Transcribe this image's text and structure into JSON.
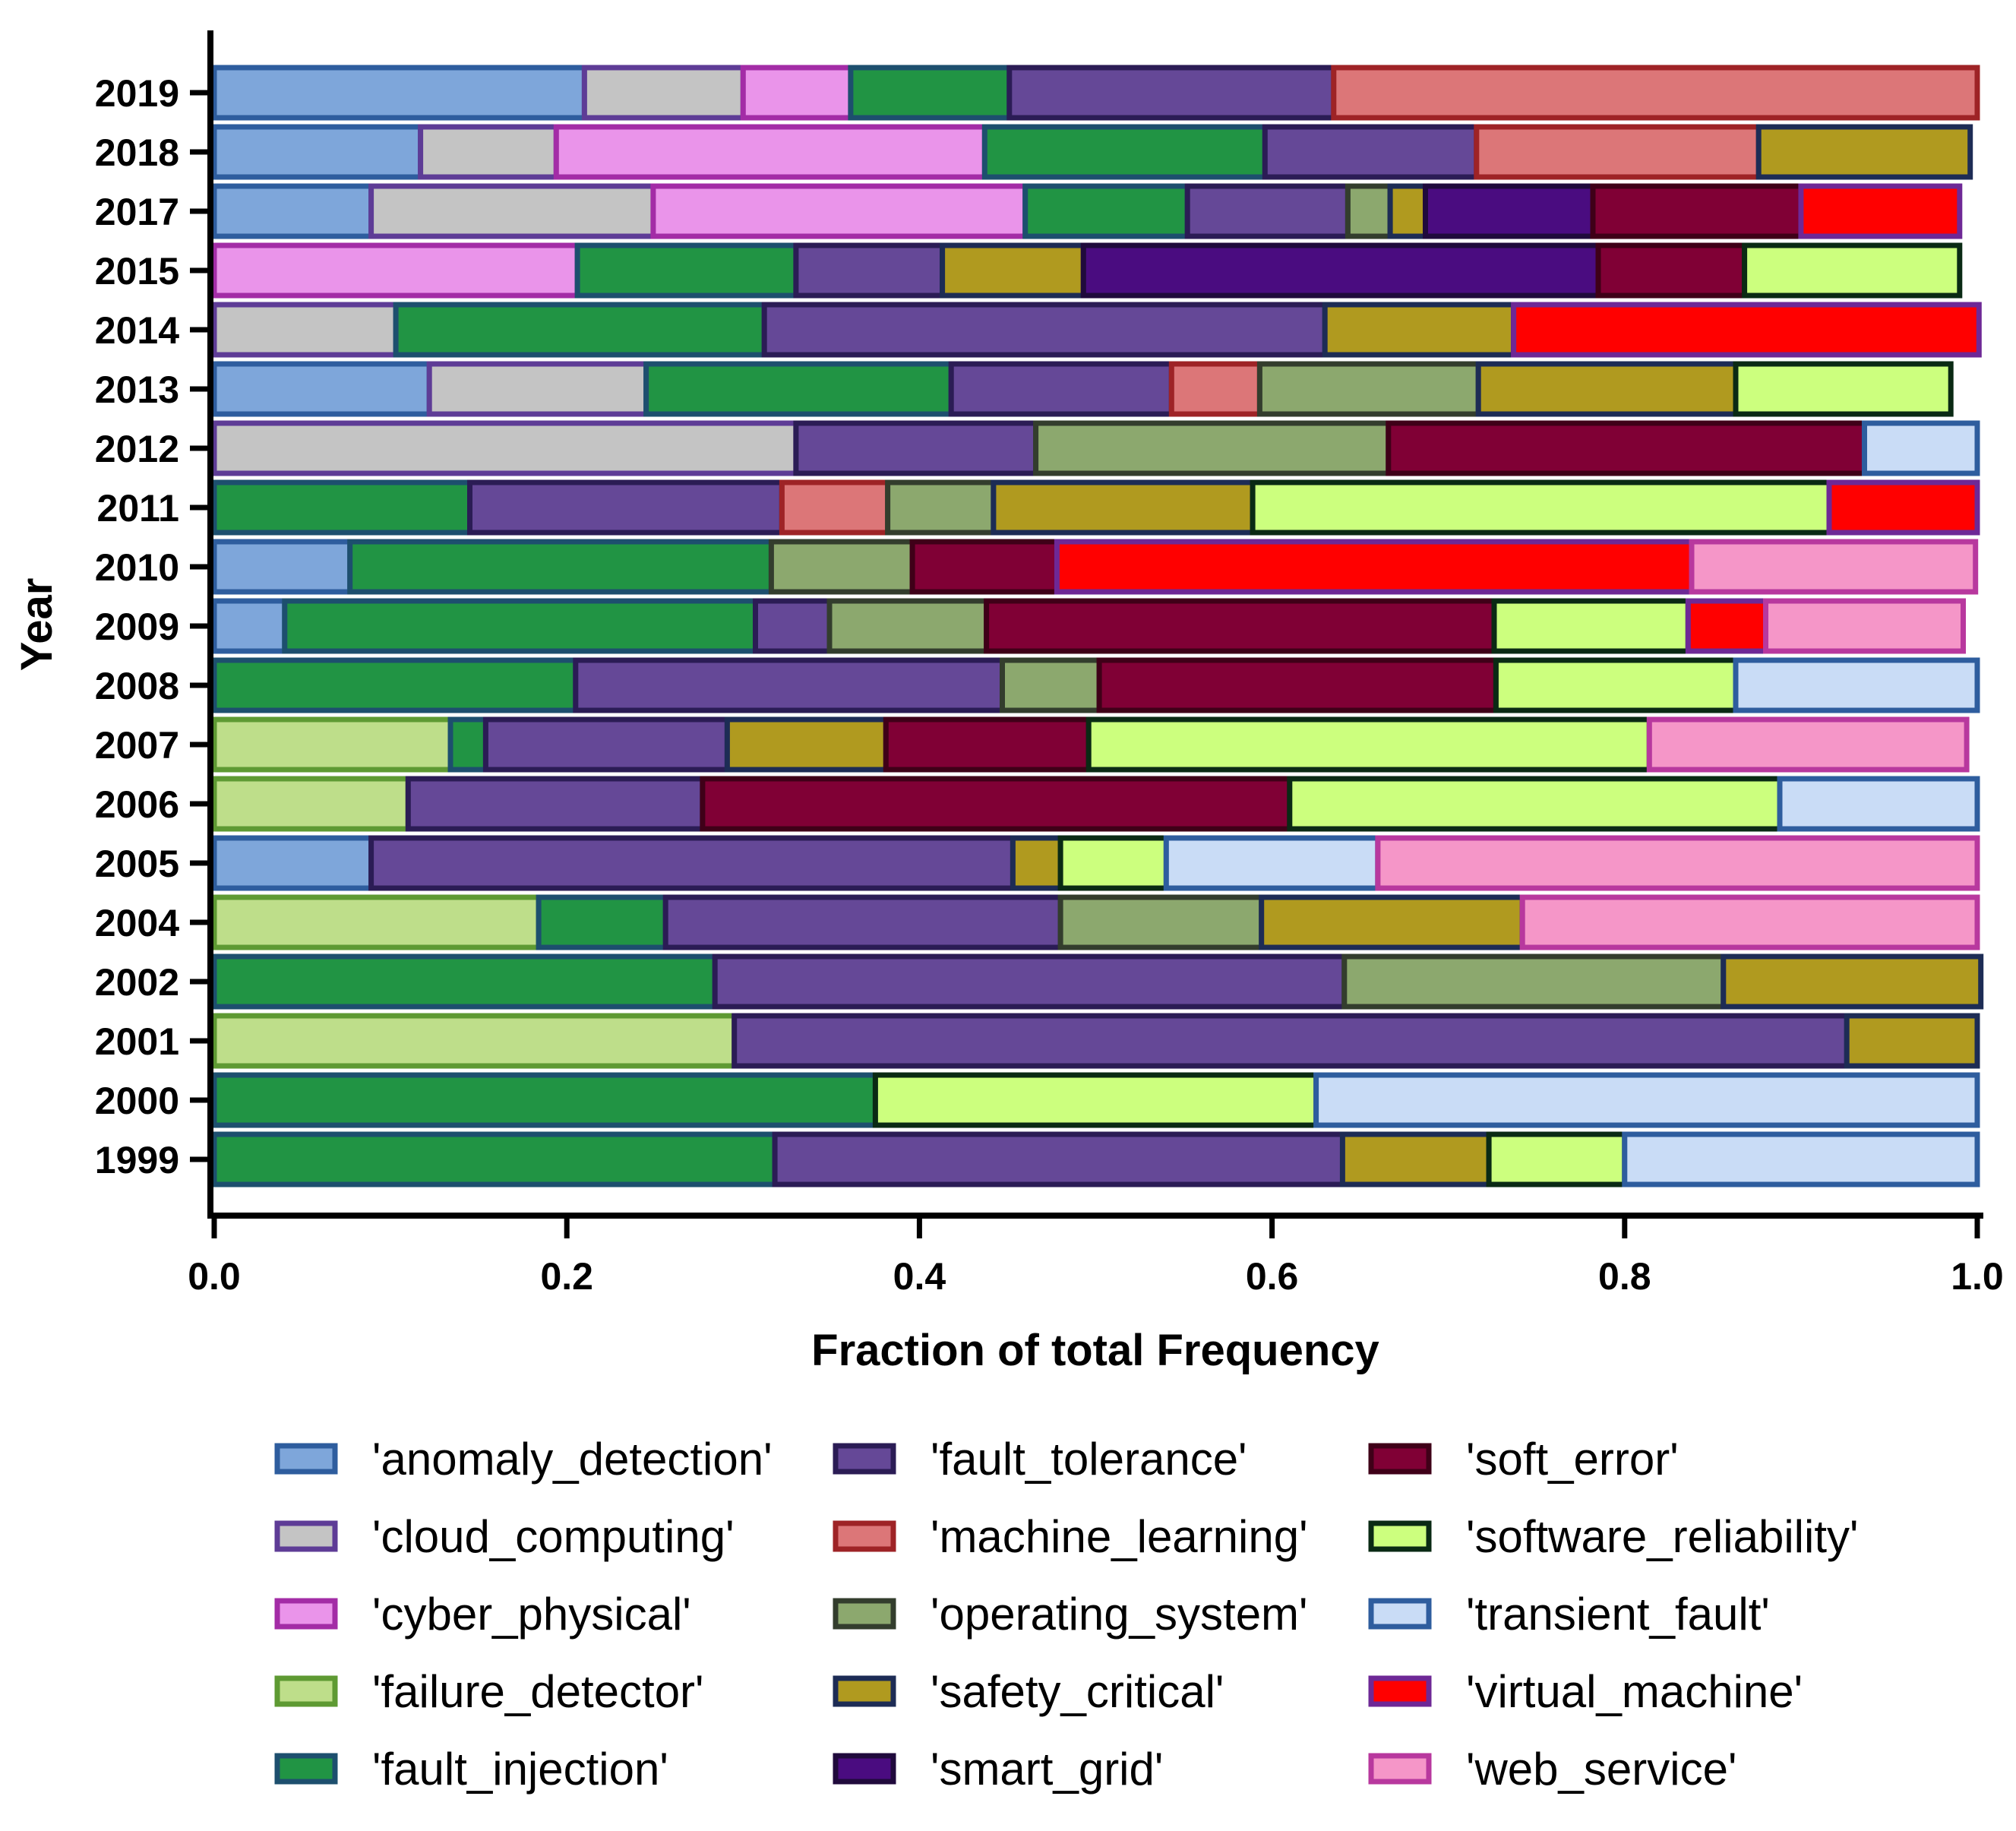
{
  "chart_data": {
    "type": "bar",
    "orientation": "horizontal",
    "stacked": true,
    "xlabel": "Fraction of total Frequency",
    "ylabel": "Year",
    "xlim": [
      0,
      1
    ],
    "x_ticks": [
      "0.0",
      "0.2",
      "0.4",
      "0.6",
      "0.8",
      "1.0"
    ],
    "categories": [
      "2019",
      "2018",
      "2017",
      "2015",
      "2014",
      "2013",
      "2012",
      "2011",
      "2010",
      "2009",
      "2008",
      "2007",
      "2006",
      "2005",
      "2004",
      "2002",
      "2001",
      "2000",
      "1999"
    ],
    "grid": false,
    "legend_position": "bottom",
    "legend_columns": 3,
    "series": [
      {
        "name": "'anomaly_detection'",
        "fill": "#7ea6da",
        "edge": "#2e5d9e",
        "values": [
          0.21,
          0.117,
          0.089,
          0,
          0,
          0.122,
          0,
          0,
          0.077,
          0.04,
          0,
          0,
          0,
          0.089,
          0,
          0,
          0,
          0,
          0
        ]
      },
      {
        "name": "'cloud_computing'",
        "fill": "#c4c4c4",
        "edge": "#5e3c96",
        "values": [
          0.09,
          0.077,
          0.16,
          0,
          0.103,
          0.123,
          0.33,
          0,
          0,
          0,
          0,
          0,
          0,
          0,
          0,
          0,
          0,
          0,
          0
        ]
      },
      {
        "name": "'cyber_physical'",
        "fill": "#ea94ea",
        "edge": "#a32ca6",
        "values": [
          0.061,
          0.243,
          0.211,
          0.206,
          0,
          0,
          0,
          0,
          0,
          0,
          0,
          0,
          0,
          0,
          0,
          0,
          0,
          0,
          0
        ]
      },
      {
        "name": "'failure_detector'",
        "fill": "#bede8a",
        "edge": "#5e9a33",
        "values": [
          0,
          0,
          0,
          0,
          0,
          0,
          0,
          0,
          0,
          0,
          0,
          0.134,
          0.11,
          0,
          0.184,
          0,
          0.295,
          0,
          0
        ]
      },
      {
        "name": "'fault_injection'",
        "fill": "#219444",
        "edge": "#1d4f6e",
        "values": [
          0.09,
          0.159,
          0.092,
          0.124,
          0.209,
          0.173,
          0,
          0.145,
          0.239,
          0.267,
          0.205,
          0.02,
          0,
          0,
          0.072,
          0.284,
          0,
          0.375,
          0.318
        ]
      },
      {
        "name": "'fault_tolerance'",
        "fill": "#654897",
        "edge": "#2b1c55",
        "values": [
          0.184,
          0.12,
          0.091,
          0.083,
          0.318,
          0.125,
          0.136,
          0.177,
          0,
          0.042,
          0.242,
          0.137,
          0.167,
          0.364,
          0.224,
          0.357,
          0.631,
          0,
          0.322
        ]
      },
      {
        "name": "'machine_learning'",
        "fill": "#dc7678",
        "edge": "#9e2326",
        "values": [
          0.365,
          0.16,
          0,
          0,
          0,
          0.05,
          0,
          0.06,
          0,
          0,
          0,
          0,
          0,
          0,
          0,
          0,
          0,
          0,
          0
        ]
      },
      {
        "name": "'operating_system'",
        "fill": "#8ca86e",
        "edge": "#333d2d",
        "values": [
          0,
          0,
          0.024,
          0,
          0,
          0.124,
          0.2,
          0.06,
          0.08,
          0.089,
          0.055,
          0,
          0,
          0,
          0.114,
          0.215,
          0,
          0,
          0
        ]
      },
      {
        "name": "'safety_critical'",
        "fill": "#b09a1f",
        "edge": "#1d2c55",
        "values": [
          0,
          0.12,
          0.02,
          0.08,
          0.107,
          0.146,
          0,
          0.147,
          0,
          0,
          0,
          0.09,
          0,
          0.027,
          0.148,
          0.146,
          0.074,
          0,
          0.083
        ]
      },
      {
        "name": "'smart_grid'",
        "fill": "#4a0c80",
        "edge": "#200a3c",
        "values": [
          0,
          0,
          0.095,
          0.292,
          0,
          0,
          0,
          0,
          0,
          0,
          0,
          0,
          0,
          0,
          0,
          0,
          0,
          0,
          0
        ]
      },
      {
        "name": "'soft_error'",
        "fill": "#800035",
        "edge": "#3f0018",
        "values": [
          0,
          0,
          0.118,
          0.083,
          0,
          0,
          0.27,
          0,
          0.082,
          0.288,
          0.225,
          0.115,
          0.333,
          0,
          0,
          0,
          0,
          0,
          0
        ]
      },
      {
        "name": "'software_reliability'",
        "fill": "#ccff7e",
        "edge": "#0a2a14",
        "values": [
          0,
          0,
          0,
          0.122,
          0,
          0.122,
          0,
          0.327,
          0,
          0.11,
          0.136,
          0.318,
          0.278,
          0.06,
          0,
          0,
          0,
          0.25,
          0.077
        ]
      },
      {
        "name": "'transient_fault'",
        "fill": "#c9dcf6",
        "edge": "#2e5d9e",
        "values": [
          0,
          0,
          0,
          0,
          0,
          0,
          0.064,
          0,
          0,
          0,
          0.137,
          0,
          0.112,
          0.12,
          0,
          0,
          0,
          0.375,
          0.2
        ]
      },
      {
        "name": "'virtual_machine'",
        "fill": "#ff0000",
        "edge": "#6e2896",
        "values": [
          0,
          0,
          0.09,
          0,
          0.264,
          0,
          0,
          0.084,
          0.36,
          0.044,
          0,
          0,
          0,
          0,
          0,
          0,
          0,
          0,
          0
        ]
      },
      {
        "name": "'web_service'",
        "fill": "#f596c8",
        "edge": "#b8389e",
        "values": [
          0,
          0,
          0,
          0,
          0,
          0,
          0,
          0,
          0.161,
          0.112,
          0,
          0.18,
          0,
          0.34,
          0.258,
          0,
          0,
          0,
          0
        ]
      }
    ]
  }
}
